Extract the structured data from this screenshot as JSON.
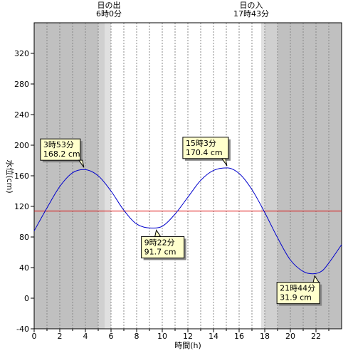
{
  "chart_data": {
    "type": "line",
    "xlabel": "時間(h)",
    "ylabel": "水位(cm)",
    "xlim": [
      0,
      24
    ],
    "ylim": [
      -40,
      360
    ],
    "x_ticks": [
      0,
      2,
      4,
      6,
      8,
      10,
      12,
      14,
      16,
      18,
      20,
      22
    ],
    "y_ticks": [
      -40,
      0,
      40,
      80,
      120,
      160,
      200,
      240,
      280,
      320
    ],
    "grid": "vertical dotted every hour",
    "reference_line": {
      "value": 114,
      "color": "#dd0000"
    },
    "series": [
      {
        "color": "#0000cc",
        "points": [
          [
            0,
            88
          ],
          [
            1,
            118
          ],
          [
            2,
            146
          ],
          [
            3,
            164
          ],
          [
            3.88,
            168.2
          ],
          [
            5,
            160
          ],
          [
            6,
            140
          ],
          [
            7,
            115
          ],
          [
            8,
            97
          ],
          [
            9.37,
            91.7
          ],
          [
            10,
            94
          ],
          [
            11,
            110
          ],
          [
            12,
            132
          ],
          [
            13,
            154
          ],
          [
            14,
            167
          ],
          [
            15.05,
            170.4
          ],
          [
            16,
            163
          ],
          [
            17,
            142
          ],
          [
            18,
            112
          ],
          [
            19,
            79
          ],
          [
            20,
            50
          ],
          [
            21,
            35
          ],
          [
            21.73,
            31.9
          ],
          [
            22.5,
            36
          ],
          [
            23,
            46
          ],
          [
            24,
            70
          ]
        ]
      }
    ],
    "annotations": [
      {
        "x": 3.88,
        "y": 168.2,
        "time": "3時53分",
        "level": "168.2 cm"
      },
      {
        "x": 9.37,
        "y": 91.7,
        "time": "9時22分",
        "level": "91.7 cm"
      },
      {
        "x": 15.05,
        "y": 170.4,
        "time": "15時3分",
        "level": "170.4 cm"
      },
      {
        "x": 21.73,
        "y": 31.9,
        "time": "21時44分",
        "level": "31.9 cm"
      }
    ],
    "sun": {
      "sunrise": {
        "label": "日の出",
        "time": "6時0分",
        "x": 6.0
      },
      "sunset": {
        "label": "日の入",
        "time": "17時43分",
        "x": 17.72
      }
    },
    "shading": {
      "night_color": "#c0c0c0",
      "twilight_color": "#e0e0e0",
      "twilight_dark_color": "#d0d0d0",
      "morning_twilight": [
        5.0,
        5.5
      ],
      "evening_twilight": [
        18.0,
        19.0
      ]
    }
  }
}
